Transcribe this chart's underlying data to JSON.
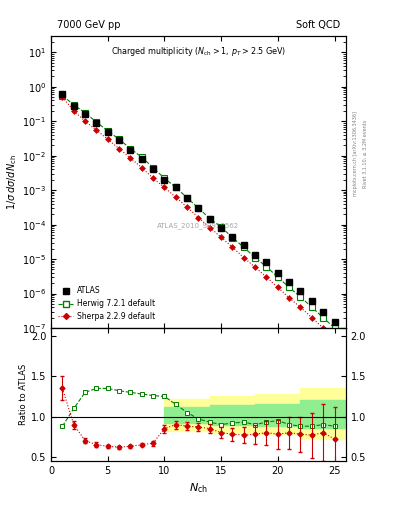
{
  "title_left": "7000 GeV pp",
  "title_right": "Soft QCD",
  "panel_title": "Charged multiplicity (N_{ch} > 1, p_{T} > 2.5 GeV)",
  "ylabel_main": "1/σ dσ/dN_{ch}",
  "ylabel_ratio": "Ratio to ATLAS",
  "xlabel": "N_{ch}",
  "watermark": "ATLAS_2010_S8918562",
  "right_label": "Rivet 3.1.10, ≥ 3.2M events",
  "right_label2": "mcplots.cern.ch [arXiv:1306.3436]",
  "atlas_x": [
    1,
    2,
    3,
    4,
    5,
    6,
    7,
    8,
    9,
    10,
    11,
    12,
    13,
    14,
    15,
    16,
    17,
    18,
    19,
    20,
    21,
    22,
    23,
    24,
    25
  ],
  "atlas_y": [
    0.62,
    0.28,
    0.16,
    0.09,
    0.05,
    0.028,
    0.015,
    0.008,
    0.004,
    0.002,
    0.0012,
    0.0006,
    0.0003,
    0.00015,
    8e-05,
    4.5e-05,
    2.5e-05,
    1.3e-05,
    8e-06,
    4e-06,
    2.2e-06,
    1.2e-06,
    6e-07,
    3e-07,
    1.5e-07
  ],
  "atlas_yerr": [
    0.03,
    0.015,
    0.008,
    0.004,
    0.002,
    0.001,
    0.0006,
    0.0003,
    0.00015,
    8e-05,
    5e-05,
    3e-05,
    1.5e-05,
    7e-06,
    4e-06,
    2.2e-06,
    1.2e-06,
    6e-07,
    3e-07,
    1.5e-07,
    9e-08,
    5e-08,
    2.5e-08,
    1.2e-08,
    8e-09
  ],
  "herwig_x": [
    1,
    2,
    3,
    4,
    5,
    6,
    7,
    8,
    9,
    10,
    11,
    12,
    13,
    14,
    15,
    16,
    17,
    18,
    19,
    20,
    21,
    22,
    23,
    24,
    25
  ],
  "herwig_y": [
    0.55,
    0.3,
    0.175,
    0.095,
    0.052,
    0.03,
    0.016,
    0.009,
    0.0045,
    0.0022,
    0.0012,
    0.0006,
    0.0003,
    0.00015,
    8.5e-05,
    4.2e-05,
    2.2e-05,
    1.1e-05,
    6e-06,
    3e-06,
    1.5e-06,
    8e-07,
    4e-07,
    2e-07,
    1e-07
  ],
  "sherpa_x": [
    1,
    2,
    3,
    4,
    5,
    6,
    7,
    8,
    9,
    10,
    11,
    12,
    13,
    14,
    15,
    16,
    17,
    18,
    19,
    20,
    21,
    22,
    23,
    24,
    25
  ],
  "sherpa_y": [
    0.5,
    0.2,
    0.1,
    0.055,
    0.03,
    0.016,
    0.0085,
    0.0045,
    0.0022,
    0.0012,
    0.00062,
    0.00032,
    0.00016,
    8.2e-05,
    4.3e-05,
    2.2e-05,
    1.1e-05,
    5.8e-06,
    3e-06,
    1.5e-06,
    7.5e-07,
    4e-07,
    2e-07,
    1e-07,
    5e-08
  ],
  "herwig_ratio_x": [
    1,
    2,
    3,
    4,
    5,
    6,
    7,
    8,
    9,
    10,
    11,
    12,
    13,
    14,
    15,
    16,
    17,
    18,
    19,
    20,
    21,
    22,
    23,
    24,
    25
  ],
  "herwig_ratio_y": [
    0.88,
    1.1,
    1.3,
    1.35,
    1.35,
    1.32,
    1.3,
    1.28,
    1.26,
    1.25,
    1.15,
    1.05,
    0.97,
    0.93,
    0.9,
    0.92,
    0.93,
    0.9,
    0.93,
    0.95,
    0.9,
    0.88,
    0.88,
    0.9,
    0.88
  ],
  "sherpa_ratio_x": [
    1,
    2,
    3,
    4,
    5,
    6,
    7,
    8,
    9,
    10,
    11,
    12,
    13,
    14,
    15,
    16,
    17,
    18,
    19,
    20,
    21,
    22,
    23,
    24,
    25
  ],
  "sherpa_ratio_y": [
    1.35,
    0.9,
    0.7,
    0.65,
    0.63,
    0.62,
    0.63,
    0.65,
    0.67,
    0.85,
    0.9,
    0.88,
    0.87,
    0.85,
    0.8,
    0.78,
    0.77,
    0.78,
    0.8,
    0.78,
    0.8,
    0.78,
    0.77,
    0.8,
    0.72
  ],
  "sherpa_ratio_yerr": [
    0.15,
    0.05,
    0.03,
    0.03,
    0.02,
    0.02,
    0.02,
    0.02,
    0.03,
    0.05,
    0.05,
    0.05,
    0.05,
    0.06,
    0.07,
    0.08,
    0.1,
    0.12,
    0.15,
    0.18,
    0.2,
    0.22,
    0.28,
    0.35,
    0.4
  ],
  "band_x_edges": [
    10,
    14,
    18,
    22,
    26
  ],
  "yellow_lo": [
    0.82,
    0.8,
    0.78,
    0.72,
    0.68
  ],
  "yellow_hi": [
    1.22,
    1.25,
    1.28,
    1.35,
    1.5
  ],
  "green_lo": [
    0.92,
    0.9,
    0.88,
    0.86,
    0.84
  ],
  "green_hi": [
    1.12,
    1.14,
    1.16,
    1.2,
    1.25
  ],
  "atlas_color": "#000000",
  "herwig_color": "#008000",
  "sherpa_color": "#cc0000",
  "herwig_band_color": "#90ee90",
  "yellow_band_color": "#ffff99",
  "ylim_main": [
    1e-07,
    30
  ],
  "ylim_ratio": [
    0.45,
    2.1
  ],
  "xlim": [
    0,
    26
  ]
}
